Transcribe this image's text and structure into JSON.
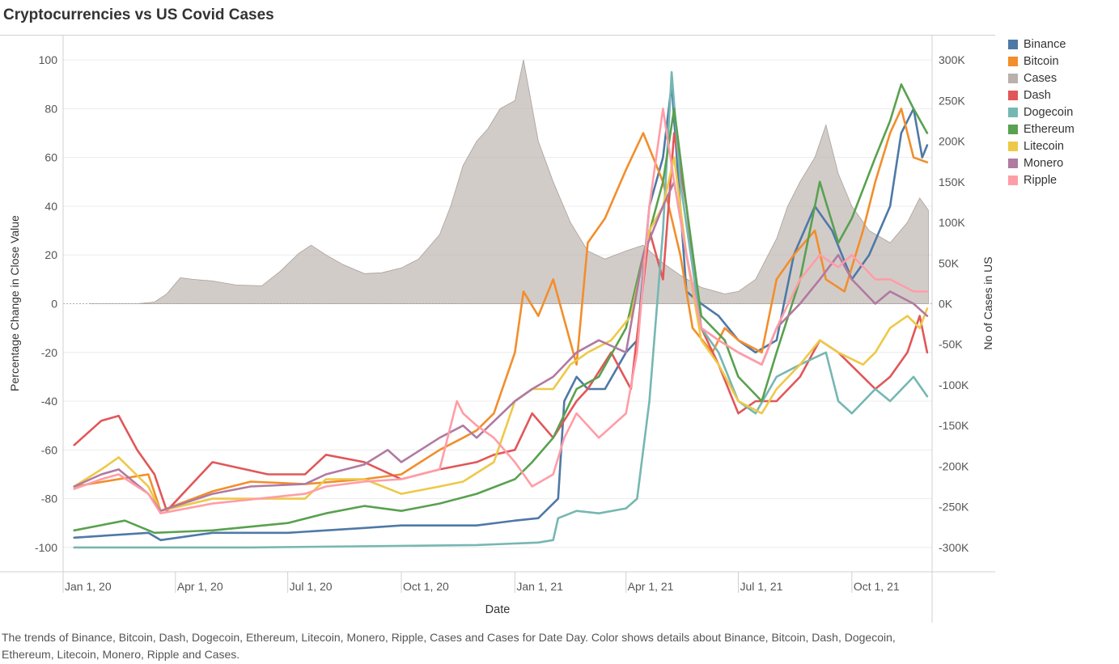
{
  "title": "Cryptocurrencies vs US Covid Cases",
  "caption": "The trends of Binance, Bitcoin, Dash, Dogecoin, Ethereum, Litecoin, Monero, Ripple, Cases and Cases for Date Day.  Color shows details about Binance, Bitcoin, Dash, Dogecoin, Ethereum, Litecoin, Monero, Ripple and Cases.",
  "chart_data": {
    "type": "line",
    "title": "Cryptocurrencies vs US Covid Cases",
    "xlabel": "Date",
    "ylabel": "Percentage Change in Close Value",
    "y2label": "No of Cases in US",
    "x_ticks": [
      "2020-01-01",
      "2020-04-01",
      "2020-07-01",
      "2020-10-01",
      "2021-01-01",
      "2021-04-01",
      "2021-07-01",
      "2021-10-01"
    ],
    "x_tick_labels": [
      "Jan 1, 20",
      "Apr 1, 20",
      "Jul 1, 20",
      "Oct 1, 20",
      "Jan 1, 21",
      "Apr 1, 21",
      "Jul 1, 21",
      "Oct 1, 21"
    ],
    "xlim": [
      "2020-01-01",
      "2021-12-05"
    ],
    "ylim": [
      -110,
      110
    ],
    "y_ticks": [
      100,
      80,
      60,
      40,
      20,
      0,
      -20,
      -40,
      -60,
      -80,
      -100
    ],
    "y2lim": [
      -330000,
      330000
    ],
    "y2_ticks": [
      300000,
      250000,
      200000,
      150000,
      100000,
      50000,
      0,
      -50000,
      -100000,
      -150000,
      -200000,
      -250000,
      -300000
    ],
    "y2_tick_labels": [
      "300K",
      "250K",
      "200K",
      "150K",
      "100K",
      "50K",
      "0K",
      "-50K",
      "-100K",
      "-150K",
      "-200K",
      "-250K",
      "-300K"
    ],
    "legend_position": "right",
    "grid": "horizontal",
    "series": [
      {
        "name": "Cases",
        "color": "#bab0ac",
        "axis": "right",
        "style": "area",
        "x": [
          "2020-01-22",
          "2020-03-01",
          "2020-03-15",
          "2020-03-25",
          "2020-04-05",
          "2020-04-15",
          "2020-05-01",
          "2020-05-20",
          "2020-06-10",
          "2020-06-25",
          "2020-07-10",
          "2020-07-20",
          "2020-08-01",
          "2020-08-15",
          "2020-09-01",
          "2020-09-15",
          "2020-10-01",
          "2020-10-15",
          "2020-11-01",
          "2020-11-10",
          "2020-11-20",
          "2020-12-01",
          "2020-12-10",
          "2020-12-20",
          "2021-01-01",
          "2021-01-08",
          "2021-01-20",
          "2021-02-01",
          "2021-02-15",
          "2021-03-01",
          "2021-03-15",
          "2021-04-01",
          "2021-04-15",
          "2021-05-01",
          "2021-05-15",
          "2021-06-01",
          "2021-06-20",
          "2021-07-01",
          "2021-07-15",
          "2021-08-01",
          "2021-08-10",
          "2021-08-20",
          "2021-09-01",
          "2021-09-10",
          "2021-09-20",
          "2021-10-01",
          "2021-10-15",
          "2021-11-01",
          "2021-11-15",
          "2021-11-25",
          "2021-12-02"
        ],
        "y": [
          0,
          0,
          2000,
          12000,
          32000,
          30000,
          28000,
          23000,
          22000,
          40000,
          62000,
          72000,
          60000,
          48000,
          37000,
          38000,
          44000,
          55000,
          85000,
          120000,
          170000,
          200000,
          215000,
          240000,
          250000,
          300000,
          200000,
          150000,
          100000,
          65000,
          55000,
          65000,
          72000,
          50000,
          35000,
          20000,
          12000,
          15000,
          30000,
          80000,
          120000,
          150000,
          180000,
          220000,
          160000,
          120000,
          90000,
          75000,
          100000,
          130000,
          115000
        ]
      },
      {
        "name": "Binance",
        "color": "#4e79a7",
        "axis": "left",
        "style": "line",
        "x": [
          "2020-01-10",
          "2020-03-10",
          "2020-03-20",
          "2020-05-01",
          "2020-07-01",
          "2020-09-01",
          "2020-10-01",
          "2020-12-01",
          "2021-01-01",
          "2021-01-20",
          "2021-02-05",
          "2021-02-10",
          "2021-02-20",
          "2021-03-01",
          "2021-03-15",
          "2021-04-01",
          "2021-04-10",
          "2021-04-20",
          "2021-05-01",
          "2021-05-08",
          "2021-05-15",
          "2021-05-20",
          "2021-06-01",
          "2021-06-15",
          "2021-07-01",
          "2021-07-15",
          "2021-08-01",
          "2021-08-15",
          "2021-09-01",
          "2021-09-15",
          "2021-10-01",
          "2021-10-15",
          "2021-11-01",
          "2021-11-10",
          "2021-11-20",
          "2021-11-27",
          "2021-12-01"
        ],
        "y": [
          -96,
          -94,
          -97,
          -94,
          -94,
          -92,
          -91,
          -91,
          -89,
          -88,
          -80,
          -40,
          -30,
          -35,
          -35,
          -20,
          -15,
          40,
          60,
          90,
          40,
          5,
          0,
          -5,
          -15,
          -20,
          -15,
          20,
          40,
          30,
          10,
          20,
          40,
          70,
          80,
          60,
          65
        ]
      },
      {
        "name": "Bitcoin",
        "color": "#f28e2b",
        "axis": "left",
        "style": "line",
        "x": [
          "2020-01-10",
          "2020-03-10",
          "2020-03-20",
          "2020-05-01",
          "2020-06-01",
          "2020-07-15",
          "2020-09-01",
          "2020-10-01",
          "2020-11-01",
          "2020-11-20",
          "2020-12-01",
          "2020-12-15",
          "2021-01-01",
          "2021-01-08",
          "2021-01-20",
          "2021-02-01",
          "2021-02-20",
          "2021-03-01",
          "2021-03-15",
          "2021-04-01",
          "2021-04-15",
          "2021-05-01",
          "2021-05-15",
          "2021-05-25",
          "2021-06-10",
          "2021-06-20",
          "2021-07-01",
          "2021-07-20",
          "2021-08-01",
          "2021-08-15",
          "2021-09-01",
          "2021-09-10",
          "2021-09-25",
          "2021-10-10",
          "2021-10-20",
          "2021-11-01",
          "2021-11-10",
          "2021-11-20",
          "2021-12-01"
        ],
        "y": [
          -75,
          -70,
          -85,
          -77,
          -73,
          -74,
          -72,
          -70,
          -60,
          -55,
          -52,
          -45,
          -20,
          5,
          -5,
          10,
          -25,
          25,
          35,
          55,
          70,
          50,
          20,
          -10,
          -20,
          -10,
          -15,
          -20,
          10,
          20,
          30,
          10,
          5,
          30,
          50,
          70,
          80,
          60,
          58
        ]
      },
      {
        "name": "Dash",
        "color": "#e15759",
        "axis": "left",
        "style": "line",
        "x": [
          "2020-01-10",
          "2020-02-01",
          "2020-02-15",
          "2020-03-01",
          "2020-03-15",
          "2020-03-25",
          "2020-05-01",
          "2020-06-15",
          "2020-07-15",
          "2020-08-01",
          "2020-09-01",
          "2020-10-01",
          "2020-11-01",
          "2020-12-01",
          "2020-12-15",
          "2021-01-01",
          "2021-01-15",
          "2021-02-01",
          "2021-02-20",
          "2021-03-01",
          "2021-03-20",
          "2021-04-05",
          "2021-04-20",
          "2021-05-01",
          "2021-05-10",
          "2021-05-20",
          "2021-06-01",
          "2021-06-15",
          "2021-07-01",
          "2021-07-15",
          "2021-08-01",
          "2021-08-20",
          "2021-09-05",
          "2021-09-20",
          "2021-10-10",
          "2021-10-20",
          "2021-11-01",
          "2021-11-15",
          "2021-11-25",
          "2021-12-01"
        ],
        "y": [
          -58,
          -48,
          -46,
          -60,
          -70,
          -85,
          -65,
          -70,
          -70,
          -62,
          -65,
          -72,
          -68,
          -65,
          -62,
          -60,
          -45,
          -55,
          -40,
          -35,
          -20,
          -35,
          30,
          10,
          70,
          40,
          -10,
          -25,
          -45,
          -40,
          -40,
          -30,
          -15,
          -20,
          -30,
          -35,
          -30,
          -20,
          -5,
          -20
        ]
      },
      {
        "name": "Dogecoin",
        "color": "#76b7b2",
        "axis": "left",
        "style": "line",
        "x": [
          "2020-01-10",
          "2020-06-01",
          "2020-12-01",
          "2021-01-20",
          "2021-02-01",
          "2021-02-05",
          "2021-02-20",
          "2021-03-10",
          "2021-04-01",
          "2021-04-10",
          "2021-04-15",
          "2021-04-20",
          "2021-05-01",
          "2021-05-08",
          "2021-05-15",
          "2021-06-01",
          "2021-06-15",
          "2021-07-01",
          "2021-07-15",
          "2021-08-01",
          "2021-08-20",
          "2021-09-10",
          "2021-09-20",
          "2021-10-01",
          "2021-10-20",
          "2021-11-01",
          "2021-11-20",
          "2021-12-01"
        ],
        "y": [
          -100,
          -100,
          -99,
          -98,
          -97,
          -88,
          -85,
          -86,
          -84,
          -80,
          -60,
          -40,
          30,
          95,
          50,
          -10,
          -20,
          -40,
          -45,
          -30,
          -25,
          -20,
          -40,
          -45,
          -35,
          -40,
          -30,
          -38
        ]
      },
      {
        "name": "Ethereum",
        "color": "#59a14f",
        "axis": "left",
        "style": "line",
        "x": [
          "2020-01-10",
          "2020-02-20",
          "2020-03-15",
          "2020-05-01",
          "2020-07-01",
          "2020-08-01",
          "2020-09-01",
          "2020-10-01",
          "2020-11-01",
          "2020-12-01",
          "2021-01-01",
          "2021-01-15",
          "2021-02-01",
          "2021-02-20",
          "2021-03-10",
          "2021-04-01",
          "2021-04-15",
          "2021-05-01",
          "2021-05-10",
          "2021-05-20",
          "2021-06-01",
          "2021-06-20",
          "2021-07-01",
          "2021-07-20",
          "2021-08-01",
          "2021-08-20",
          "2021-09-05",
          "2021-09-20",
          "2021-10-01",
          "2021-10-20",
          "2021-11-01",
          "2021-11-10",
          "2021-11-20",
          "2021-12-01"
        ],
        "y": [
          -93,
          -89,
          -94,
          -93,
          -90,
          -86,
          -83,
          -85,
          -82,
          -78,
          -72,
          -65,
          -55,
          -35,
          -30,
          -10,
          20,
          50,
          80,
          40,
          -5,
          -15,
          -30,
          -40,
          -20,
          10,
          50,
          25,
          35,
          60,
          75,
          90,
          80,
          70
        ]
      },
      {
        "name": "Litecoin",
        "color": "#edc948",
        "axis": "left",
        "style": "line",
        "x": [
          "2020-01-10",
          "2020-02-01",
          "2020-02-15",
          "2020-03-10",
          "2020-03-20",
          "2020-05-01",
          "2020-07-15",
          "2020-08-01",
          "2020-09-01",
          "2020-10-01",
          "2020-11-01",
          "2020-11-20",
          "2020-12-15",
          "2021-01-01",
          "2021-01-15",
          "2021-02-01",
          "2021-02-15",
          "2021-03-01",
          "2021-03-20",
          "2021-04-05",
          "2021-04-20",
          "2021-05-01",
          "2021-05-10",
          "2021-05-20",
          "2021-06-01",
          "2021-06-15",
          "2021-07-01",
          "2021-07-20",
          "2021-08-01",
          "2021-08-20",
          "2021-09-05",
          "2021-09-20",
          "2021-10-10",
          "2021-10-20",
          "2021-11-01",
          "2021-11-15",
          "2021-11-25",
          "2021-12-01"
        ],
        "y": [
          -75,
          -68,
          -63,
          -75,
          -85,
          -80,
          -80,
          -72,
          -72,
          -78,
          -75,
          -73,
          -65,
          -40,
          -35,
          -35,
          -25,
          -20,
          -15,
          -5,
          30,
          40,
          60,
          20,
          -15,
          -25,
          -40,
          -45,
          -35,
          -25,
          -15,
          -20,
          -25,
          -20,
          -10,
          -5,
          -10,
          -2
        ]
      },
      {
        "name": "Monero",
        "color": "#b07aa1",
        "axis": "left",
        "style": "line",
        "x": [
          "2020-01-10",
          "2020-02-01",
          "2020-02-15",
          "2020-03-10",
          "2020-03-20",
          "2020-04-01",
          "2020-05-01",
          "2020-06-01",
          "2020-07-15",
          "2020-08-01",
          "2020-09-01",
          "2020-09-20",
          "2020-10-01",
          "2020-11-01",
          "2020-11-20",
          "2020-12-01",
          "2021-01-01",
          "2021-01-15",
          "2021-02-01",
          "2021-02-20",
          "2021-03-10",
          "2021-04-01",
          "2021-04-15",
          "2021-05-01",
          "2021-05-10",
          "2021-05-20",
          "2021-06-01",
          "2021-06-15",
          "2021-07-01",
          "2021-07-20",
          "2021-08-01",
          "2021-08-20",
          "2021-09-05",
          "2021-09-20",
          "2021-10-01",
          "2021-10-20",
          "2021-11-01",
          "2021-11-20",
          "2021-12-01"
        ],
        "y": [
          -75,
          -70,
          -68,
          -78,
          -85,
          -83,
          -78,
          -75,
          -74,
          -70,
          -66,
          -60,
          -65,
          -55,
          -50,
          -55,
          -40,
          -35,
          -30,
          -20,
          -15,
          -20,
          20,
          40,
          50,
          20,
          -10,
          -15,
          -20,
          -25,
          -10,
          0,
          10,
          20,
          10,
          0,
          5,
          0,
          -5
        ]
      },
      {
        "name": "Ripple",
        "color": "#ff9da7",
        "axis": "left",
        "style": "line",
        "x": [
          "2020-01-10",
          "2020-02-01",
          "2020-02-15",
          "2020-03-10",
          "2020-03-20",
          "2020-05-01",
          "2020-07-15",
          "2020-08-01",
          "2020-09-01",
          "2020-10-01",
          "2020-11-01",
          "2020-11-15",
          "2020-11-20",
          "2020-12-01",
          "2020-12-15",
          "2021-01-01",
          "2021-01-15",
          "2021-02-01",
          "2021-02-10",
          "2021-02-20",
          "2021-03-10",
          "2021-04-01",
          "2021-04-10",
          "2021-04-20",
          "2021-05-01",
          "2021-05-10",
          "2021-05-20",
          "2021-06-01",
          "2021-06-15",
          "2021-07-01",
          "2021-07-20",
          "2021-08-01",
          "2021-08-20",
          "2021-09-05",
          "2021-09-20",
          "2021-10-01",
          "2021-10-20",
          "2021-11-01",
          "2021-11-20",
          "2021-12-01"
        ],
        "y": [
          -76,
          -72,
          -70,
          -78,
          -86,
          -82,
          -78,
          -75,
          -73,
          -72,
          -68,
          -40,
          -45,
          -50,
          -55,
          -65,
          -75,
          -70,
          -55,
          -45,
          -55,
          -45,
          -20,
          40,
          80,
          50,
          20,
          -10,
          -15,
          -20,
          -25,
          -10,
          10,
          20,
          15,
          20,
          10,
          10,
          5,
          5
        ]
      }
    ]
  }
}
